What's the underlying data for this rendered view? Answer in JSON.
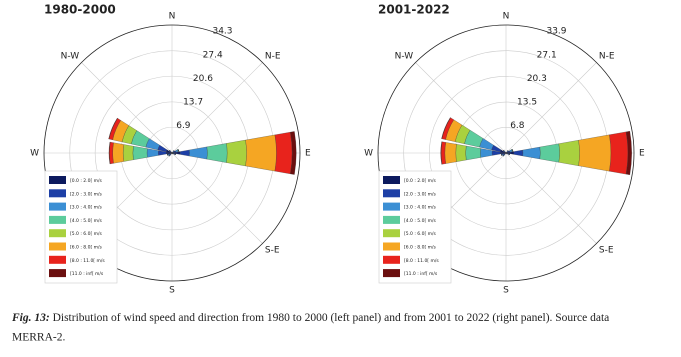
{
  "chart_data": [
    {
      "type": "windrose",
      "title": "1980-2000",
      "direction_labels": [
        "N",
        "N-E",
        "E",
        "S-E",
        "S",
        null,
        "W",
        "N-W"
      ],
      "directions": [
        0,
        22.5,
        45,
        67.5,
        90,
        112.5,
        135,
        157.5,
        180,
        202.5,
        225,
        247.5,
        270,
        292.5,
        315,
        337.5
      ],
      "rlim": [
        0,
        34.3
      ],
      "rticks": [
        6.9,
        13.7,
        20.6,
        27.4,
        34.3
      ],
      "series": [
        {
          "name": "[0.0 : 2.0[ m/s",
          "color": "#0c1a5e",
          "values": [
            0.1,
            0.1,
            0.3,
            0.5,
            2.2,
            0.5,
            0.2,
            0.1,
            0.1,
            0.1,
            0.3,
            0.5,
            1.5,
            1.6,
            0.4,
            0.1
          ]
        },
        {
          "name": "[2.0 : 3.0[ m/s",
          "color": "#1d3fa6",
          "values": [
            0,
            0,
            0.3,
            0.6,
            2.5,
            0.3,
            0.1,
            0,
            0,
            0,
            0.4,
            0.5,
            2.2,
            2.3,
            0.3,
            0
          ]
        },
        {
          "name": "[3.0 : 4.0[ m/s",
          "color": "#3b8fd4",
          "values": [
            0,
            0,
            0.2,
            0.6,
            4.8,
            0.2,
            0,
            0,
            0,
            0,
            0.3,
            0.3,
            3.0,
            3.3,
            0.2,
            0
          ]
        },
        {
          "name": "[4.0 : 5.0[ m/s",
          "color": "#5ccc9c",
          "values": [
            0,
            0,
            0,
            0.2,
            5.3,
            0,
            0,
            0,
            0,
            0,
            0,
            0,
            3.8,
            4.0,
            0,
            0
          ]
        },
        {
          "name": "[5.0 : 6.0[ m/s",
          "color": "#a9d13f",
          "values": [
            0,
            0,
            0,
            0,
            5.2,
            0,
            0,
            0,
            0,
            0,
            0,
            0,
            2.6,
            2.5,
            0,
            0
          ]
        },
        {
          "name": "[6.0 : 8.0[ m/s",
          "color": "#f5a623",
          "values": [
            0,
            0,
            0,
            0,
            8.0,
            0,
            0,
            0,
            0,
            0,
            0,
            0,
            2.8,
            2.6,
            0,
            0
          ]
        },
        {
          "name": "[8.0 : 11.0[ m/s",
          "color": "#e8231c",
          "values": [
            0,
            0,
            0,
            0,
            4.2,
            0,
            0,
            0,
            0,
            0,
            0,
            0,
            0.9,
            1.0,
            0,
            0
          ]
        },
        {
          "name": "[11.0 : inf[ m/s",
          "color": "#6b0f0f",
          "values": [
            0,
            0,
            0,
            0,
            1.1,
            0,
            0,
            0,
            0,
            0,
            0,
            0,
            0.1,
            0.1,
            0,
            0
          ]
        }
      ]
    },
    {
      "type": "windrose",
      "title": "2001-2022",
      "direction_labels": [
        "N",
        "N-E",
        "E",
        "S-E",
        "S",
        null,
        "W",
        "N-W"
      ],
      "directions": [
        0,
        22.5,
        45,
        67.5,
        90,
        112.5,
        135,
        157.5,
        180,
        202.5,
        225,
        247.5,
        270,
        292.5,
        315,
        337.5
      ],
      "rlim": [
        0,
        33.9
      ],
      "rticks": [
        6.8,
        13.5,
        20.3,
        27.1,
        33.9
      ],
      "series": [
        {
          "name": "[0.0 : 2.0[ m/s",
          "color": "#0c1a5e",
          "values": [
            0.1,
            0.1,
            0.3,
            0.5,
            2.1,
            0.5,
            0.2,
            0.1,
            0.1,
            0.1,
            0.3,
            0.5,
            1.5,
            1.6,
            0.4,
            0.1
          ]
        },
        {
          "name": "[2.0 : 3.0[ m/s",
          "color": "#1d3fa6",
          "values": [
            0,
            0,
            0.3,
            0.6,
            2.4,
            0.3,
            0.1,
            0,
            0,
            0,
            0.4,
            0.5,
            2.2,
            2.3,
            0.3,
            0
          ]
        },
        {
          "name": "[3.0 : 4.0[ m/s",
          "color": "#3b8fd4",
          "values": [
            0,
            0,
            0.2,
            0.6,
            4.6,
            0.2,
            0,
            0,
            0,
            0,
            0.3,
            0.3,
            3.1,
            3.3,
            0.2,
            0
          ]
        },
        {
          "name": "[4.0 : 5.0[ m/s",
          "color": "#5ccc9c",
          "values": [
            0,
            0,
            0,
            0.2,
            5.1,
            0,
            0,
            0,
            0,
            0,
            0,
            0,
            3.9,
            4.1,
            0,
            0
          ]
        },
        {
          "name": "[5.0 : 6.0[ m/s",
          "color": "#a9d13f",
          "values": [
            0,
            0,
            0,
            0,
            5.3,
            0,
            0,
            0,
            0,
            0,
            0,
            0,
            2.6,
            2.5,
            0,
            0
          ]
        },
        {
          "name": "[6.0 : 8.0[ m/s",
          "color": "#f5a623",
          "values": [
            0,
            0,
            0,
            0,
            8.3,
            0,
            0,
            0,
            0,
            0,
            0,
            0,
            2.9,
            2.6,
            0,
            0
          ]
        },
        {
          "name": "[8.0 : 11.0[ m/s",
          "color": "#e8231c",
          "values": [
            0,
            0,
            0,
            0,
            4.5,
            0,
            0,
            0,
            0,
            0,
            0,
            0,
            1.0,
            1.0,
            0,
            0
          ]
        },
        {
          "name": "[11.0 : inf[ m/s",
          "color": "#6b0f0f",
          "values": [
            0,
            0,
            0,
            0,
            1.0,
            0,
            0,
            0,
            0,
            0,
            0,
            0,
            0.1,
            0.1,
            0,
            0
          ]
        }
      ]
    }
  ],
  "caption": {
    "label": "Fig. 13:",
    "text": " Distribution of wind speed and direction from 1980 to 2000 (left panel) and from 2001 to 2022 (right panel). Source data",
    "text2": "MERRA-2."
  }
}
